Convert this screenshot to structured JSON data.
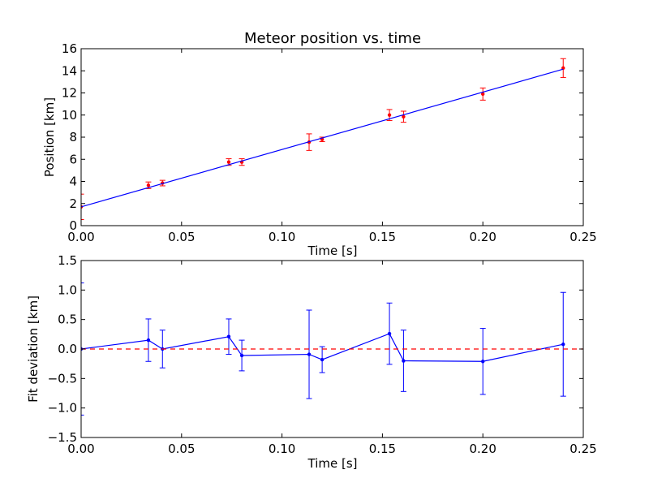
{
  "chart_data": [
    {
      "type": "scatter",
      "title": "Meteor position vs. time",
      "xlabel": "Time [s]",
      "ylabel": "Position [km]",
      "xlim": [
        0.0,
        0.25
      ],
      "ylim": [
        0,
        16
      ],
      "xticks": [
        "0.00",
        "0.05",
        "0.10",
        "0.15",
        "0.20",
        "0.25"
      ],
      "yticks": [
        "0",
        "2",
        "4",
        "6",
        "8",
        "10",
        "12",
        "14",
        "16"
      ],
      "grid": false,
      "series": [
        {
          "kind": "errorbar",
          "color": "#ff0000",
          "x": [
            0.0,
            0.0335,
            0.0405,
            0.0735,
            0.08,
            0.1135,
            0.12,
            0.1535,
            0.1605,
            0.2,
            0.24
          ],
          "y": [
            1.7,
            3.65,
            3.85,
            5.75,
            5.75,
            7.55,
            7.8,
            10.0,
            9.85,
            11.9,
            14.25
          ],
          "yerr": [
            1.15,
            0.3,
            0.25,
            0.3,
            0.3,
            0.75,
            0.2,
            0.5,
            0.5,
            0.55,
            0.85
          ]
        },
        {
          "kind": "line",
          "color": "#0000ff",
          "x": [
            0.0,
            0.24
          ],
          "y": [
            1.7,
            14.15
          ]
        }
      ]
    },
    {
      "type": "line",
      "title": "",
      "xlabel": "Time [s]",
      "ylabel": "Fit deviation [km]",
      "xlim": [
        0.0,
        0.25
      ],
      "ylim": [
        -1.5,
        1.5
      ],
      "xticks": [
        "0.00",
        "0.05",
        "0.10",
        "0.15",
        "0.20",
        "0.25"
      ],
      "yticks": [
        "−1.5",
        "−1.0",
        "−0.5",
        "0.0",
        "0.5",
        "1.0",
        "1.5"
      ],
      "grid": false,
      "series": [
        {
          "kind": "errorbar-line",
          "color": "#0000ff",
          "x": [
            0.0,
            0.0335,
            0.0405,
            0.0735,
            0.08,
            0.1135,
            0.12,
            0.1535,
            0.1605,
            0.2,
            0.24
          ],
          "y": [
            0.0,
            0.15,
            0.0,
            0.21,
            -0.11,
            -0.09,
            -0.18,
            0.26,
            -0.2,
            -0.21,
            0.08
          ],
          "yerr": [
            1.12,
            0.36,
            0.32,
            0.3,
            0.26,
            0.75,
            0.22,
            0.52,
            0.52,
            0.56,
            0.88
          ]
        },
        {
          "kind": "reference-line",
          "color": "#ff0000",
          "style": "dashed",
          "y": 0.0
        }
      ]
    }
  ]
}
